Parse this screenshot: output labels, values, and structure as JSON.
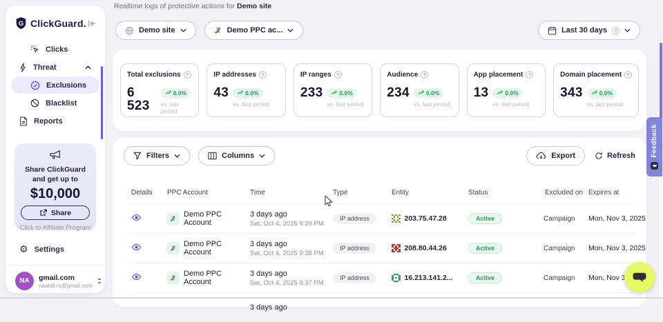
{
  "colors": {
    "accent": "#5b4be0",
    "sidebar_selected_bg": "#eceafc",
    "status_green": "#27a05b",
    "feedback_purple": "#8084da",
    "chat_yellow": "#e6fa68",
    "avatar_purple": "#a24fc8"
  },
  "sidebar": {
    "logo": "ClickGuard.",
    "nav": {
      "clicks": "Clicks",
      "threat": "Threat",
      "exclusions": "Exclusions",
      "blacklist": "Blacklist",
      "reports": "Reports"
    },
    "promo": {
      "headline": "Share ClickGuard and get up to",
      "amount": "$10,000",
      "share": "Share",
      "caption": "Click to Affiliate Program"
    },
    "settings": "Settings",
    "user": {
      "initials": "NA",
      "name": "gmail.com",
      "email": "naatali.ro@gmail.com"
    }
  },
  "header": {
    "subtitle": "Realtime logs of protective actions for",
    "site_bold": "Demo site",
    "site_filter": "Demo site",
    "account_filter": "Demo PPC ac...",
    "date_filter": "Last 30 days"
  },
  "stats": [
    {
      "label": "Total exclusions",
      "value": "6 523",
      "delta": "0.0%",
      "caption": "vs. last period"
    },
    {
      "label": "IP addresses",
      "value": "43",
      "delta": "0.0%",
      "caption": "vs. last period"
    },
    {
      "label": "IP ranges",
      "value": "233",
      "delta": "0.0%",
      "caption": "vs. last period"
    },
    {
      "label": "Audience",
      "value": "234",
      "delta": "0.0%",
      "caption": "vs. last period"
    },
    {
      "label": "App placement",
      "value": "13",
      "delta": "0.0%",
      "caption": "vs. last period"
    },
    {
      "label": "Domain placement",
      "value": "343",
      "delta": "0.0%",
      "caption": "vs. last period"
    }
  ],
  "table": {
    "toolbar": {
      "filters": "Filters",
      "columns": "Columns",
      "export": "Export",
      "refresh": "Refresh"
    },
    "headers": {
      "details": "Details",
      "account": "PPC Account",
      "time": "Time",
      "type": "Type",
      "entity": "Entity",
      "status": "Status",
      "excluded": "Excluded on",
      "expires": "Expires at"
    },
    "rows": [
      {
        "account": "Demo PPC Account",
        "time_rel": "3 days ago",
        "time_abs": "Sat, Oct 4, 2025 9:39 PM",
        "type": "IP address",
        "entity": "203.75.47.28",
        "status": "Active",
        "excluded_on": "Campaign",
        "expires": "Mon, Nov 3, 2025",
        "identicon": "#a58e2d"
      },
      {
        "account": "Demo PPC Account",
        "time_rel": "3 days ago",
        "time_abs": "Sat, Oct 4, 2025 9:38 PM",
        "type": "IP address",
        "entity": "208.80.44.26",
        "status": "Active",
        "excluded_on": "Campaign",
        "expires": "Mon, Nov 3, 2025",
        "identicon": "#b23a30"
      },
      {
        "account": "Demo PPC Account",
        "time_rel": "3 days ago",
        "time_abs": "Sat, Oct 4, 2025 9:37 PM",
        "type": "IP address",
        "entity": "16.213.141.2...",
        "status": "Active",
        "excluded_on": "Campaign",
        "expires": "Mon, Nov 3, 2025",
        "identicon": "#2e9e6b"
      },
      {
        "time_rel": "3 days ago"
      }
    ]
  },
  "feedback_label": "Feedback"
}
